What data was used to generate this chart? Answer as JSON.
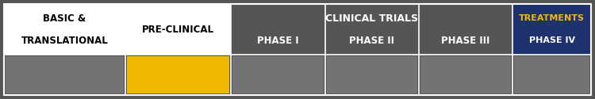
{
  "sections": [
    {
      "label_line1": "BASIC &",
      "label_line2": "TRANSLATIONAL",
      "header_bg": "#ffffff",
      "header_text_color": "#000000",
      "box_color": "#737373",
      "weight": 1.55,
      "is_grouped": false
    },
    {
      "label_line1": "PRE-CLINICAL",
      "label_line2": "",
      "header_bg": "#ffffff",
      "header_text_color": "#000000",
      "box_color": "#f0b800",
      "weight": 1.35,
      "is_grouped": false
    },
    {
      "label_line1": "PHASE I",
      "label_line2": "",
      "header_bg": "#555555",
      "header_text_color": "#ffffff",
      "box_color": "#737373",
      "weight": 1.2,
      "is_grouped": true
    },
    {
      "label_line1": "PHASE II",
      "label_line2": "",
      "header_bg": "#555555",
      "header_text_color": "#ffffff",
      "box_color": "#737373",
      "weight": 1.2,
      "is_grouped": true
    },
    {
      "label_line1": "PHASE III",
      "label_line2": "",
      "header_bg": "#555555",
      "header_text_color": "#ffffff",
      "box_color": "#737373",
      "weight": 1.2,
      "is_grouped": true
    },
    {
      "label_line1": "TREATMENTS",
      "label_line2": "PHASE IV",
      "header_bg": "#1e3270",
      "header_text_color_line1": "#f0b800",
      "header_text_color_line2": "#ffffff",
      "box_color": "#737373",
      "weight": 1.0,
      "is_grouped": false
    }
  ],
  "outer_bg": "#555555",
  "border_color": "#ffffff",
  "group_label": "CLINICAL TRIALS",
  "group_label_color": "#ffffff",
  "group_bg": "#555555",
  "fig_width": 7.5,
  "fig_height": 1.25,
  "dpi": 100
}
